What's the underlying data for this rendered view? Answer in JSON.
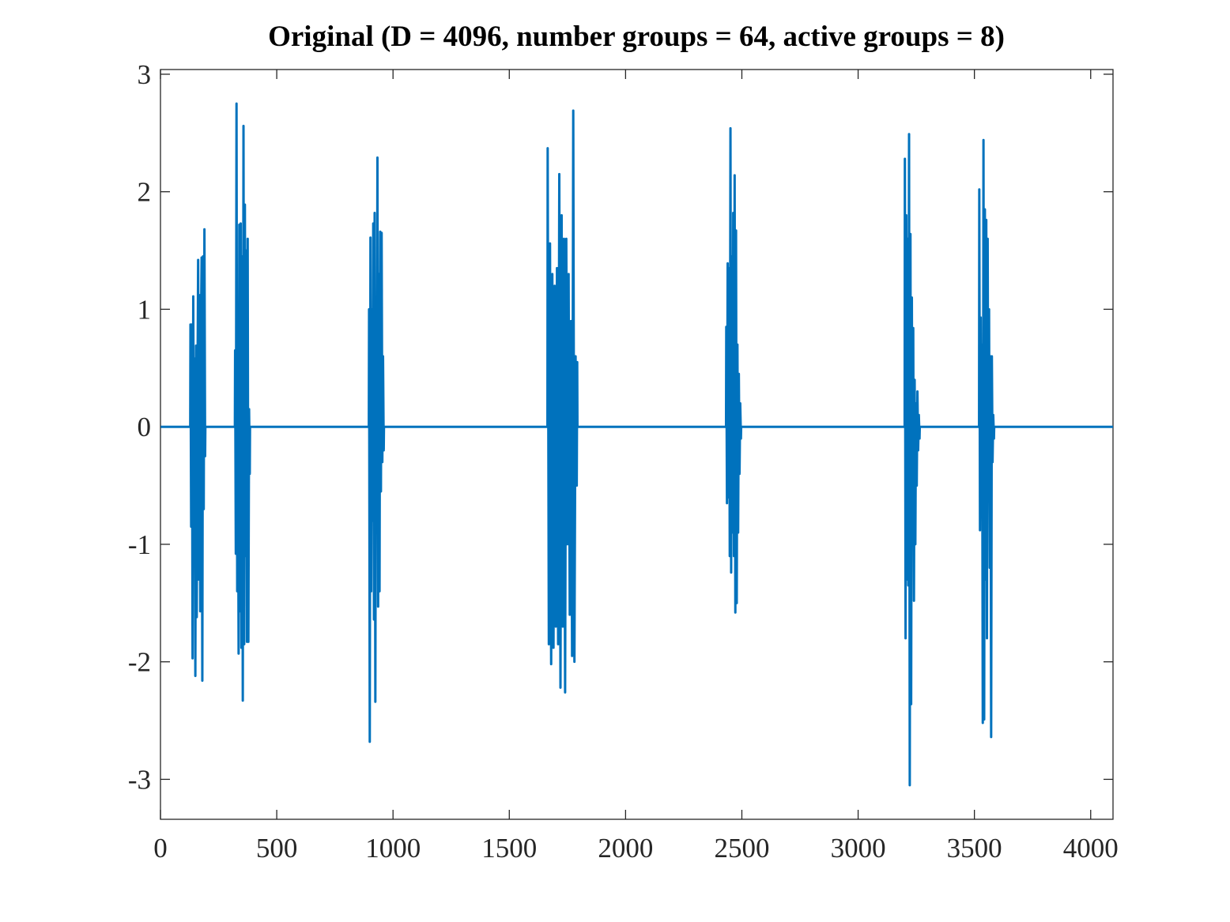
{
  "chart_data": {
    "type": "line",
    "title": "Original (D = 4096, number groups = 64, active groups = 8)",
    "color": "#0072bd",
    "xlim": [
      0,
      4096
    ],
    "ylim": [
      -3.34,
      3.04
    ],
    "xticks": [
      0,
      500,
      1000,
      1500,
      2000,
      2500,
      3000,
      3500,
      4000
    ],
    "yticks": [
      -3,
      -2,
      -1,
      0,
      1,
      2,
      3
    ],
    "grid": false,
    "x": [
      1,
      128,
      129,
      132,
      135,
      138,
      141,
      144,
      147,
      150,
      153,
      156,
      159,
      162,
      165,
      168,
      171,
      174,
      177,
      180,
      183,
      186,
      189,
      192,
      193,
      320,
      321,
      324,
      327,
      330,
      333,
      336,
      339,
      342,
      345,
      348,
      351,
      354,
      357,
      360,
      363,
      366,
      369,
      372,
      375,
      378,
      381,
      384,
      385,
      896,
      897,
      900,
      903,
      906,
      909,
      912,
      915,
      918,
      921,
      924,
      927,
      930,
      933,
      936,
      939,
      942,
      945,
      948,
      951,
      954,
      957,
      960,
      961,
      1664,
      1665,
      1670,
      1675,
      1680,
      1685,
      1690,
      1695,
      1700,
      1705,
      1710,
      1715,
      1720,
      1725,
      1730,
      1735,
      1740,
      1745,
      1750,
      1755,
      1760,
      1765,
      1770,
      1775,
      1780,
      1785,
      1790,
      1792,
      1793,
      2432,
      2433,
      2436,
      2439,
      2442,
      2445,
      2448,
      2451,
      2454,
      2457,
      2460,
      2463,
      2466,
      2469,
      2472,
      2475,
      2478,
      2481,
      2484,
      2487,
      2490,
      2493,
      2496,
      2497,
      3200,
      3201,
      3204,
      3207,
      3210,
      3213,
      3216,
      3219,
      3222,
      3225,
      3228,
      3231,
      3234,
      3237,
      3240,
      3243,
      3246,
      3249,
      3252,
      3255,
      3258,
      3261,
      3264,
      3265,
      3520,
      3521,
      3524,
      3527,
      3530,
      3533,
      3536,
      3539,
      3542,
      3545,
      3548,
      3551,
      3554,
      3557,
      3560,
      3563,
      3566,
      3569,
      3572,
      3575,
      3578,
      3581,
      3584,
      3585,
      4096
    ],
    "values": [
      0,
      0,
      0.87,
      -0.85,
      0.87,
      -1.97,
      1.11,
      -1.1,
      0.58,
      -2.12,
      0.69,
      -1.62,
      0.3,
      1.42,
      -1.3,
      1.12,
      -1.57,
      0.8,
      1.44,
      -2.16,
      1.45,
      -0.7,
      1.68,
      -0.25,
      0,
      0,
      0.65,
      -1.08,
      2.75,
      -1.4,
      0.2,
      -1.93,
      1.72,
      -1.57,
      1.73,
      -1.88,
      1.45,
      -2.33,
      2.56,
      -1.85,
      1.89,
      -1.1,
      1.5,
      -1.83,
      1.6,
      -1.83,
      0.15,
      -0.4,
      0,
      0,
      1.0,
      -2.68,
      1.61,
      -1.4,
      1.0,
      -0.8,
      1.73,
      -1.64,
      1.82,
      -2.34,
      1.0,
      -0.5,
      2.29,
      -1.53,
      1.3,
      -1.4,
      1.66,
      -0.55,
      1.65,
      -0.3,
      0.6,
      -0.2,
      0,
      0,
      2.37,
      -1.85,
      1.56,
      -2.02,
      1.3,
      -1.88,
      1.2,
      -1.7,
      1.35,
      -1.85,
      2.15,
      -2.22,
      1.8,
      -1.7,
      1.6,
      -2.26,
      1.6,
      -1.0,
      1.3,
      -1.6,
      0.9,
      -1.95,
      2.69,
      -2.0,
      0.6,
      -0.5,
      0.55,
      0,
      0,
      0.85,
      -0.65,
      1.39,
      -0.6,
      1.35,
      -1.1,
      2.54,
      -1.24,
      1.45,
      -0.9,
      1.82,
      -1.1,
      2.14,
      -1.58,
      1.67,
      -1.5,
      0.7,
      -0.9,
      0.45,
      -0.4,
      0.2,
      -0.1,
      0,
      0,
      2.28,
      -1.8,
      1.8,
      -1.3,
      1.6,
      -1.35,
      2.49,
      -3.05,
      1.64,
      -2.36,
      1.1,
      -1.0,
      0.84,
      -1.48,
      0.4,
      -1.0,
      0.2,
      -0.5,
      0.3,
      -0.2,
      0.1,
      -0.1,
      0,
      0,
      2.02,
      -0.88,
      0.93,
      -0.5,
      0.7,
      -2.52,
      2.44,
      -2.49,
      1.85,
      -1.3,
      1.76,
      -1.8,
      1.6,
      -0.6,
      1.0,
      -1.2,
      0.6,
      -2.64,
      0.6,
      -0.3,
      0.1,
      -0.1,
      0,
      0
    ]
  }
}
